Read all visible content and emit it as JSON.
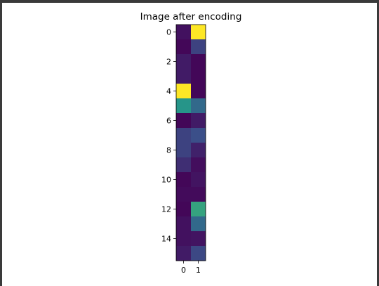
{
  "chart_data": {
    "type": "heatmap",
    "title": "Image after encoding",
    "xlabel": "",
    "ylabel": "",
    "colormap": "viridis",
    "rows": 16,
    "cols": 2,
    "x_ticks": [
      0,
      1
    ],
    "y_ticks": [
      0,
      2,
      4,
      6,
      8,
      10,
      12,
      14
    ],
    "values": [
      [
        0.05,
        1.0
      ],
      [
        0.02,
        0.2
      ],
      [
        0.08,
        0.02
      ],
      [
        0.08,
        0.02
      ],
      [
        1.0,
        0.02
      ],
      [
        0.52,
        0.34
      ],
      [
        0.02,
        0.08
      ],
      [
        0.2,
        0.24
      ],
      [
        0.2,
        0.1
      ],
      [
        0.14,
        0.04
      ],
      [
        0.02,
        0.06
      ],
      [
        0.03,
        0.03
      ],
      [
        0.02,
        0.58
      ],
      [
        0.05,
        0.34
      ],
      [
        0.05,
        0.06
      ],
      [
        0.08,
        0.22
      ]
    ]
  }
}
